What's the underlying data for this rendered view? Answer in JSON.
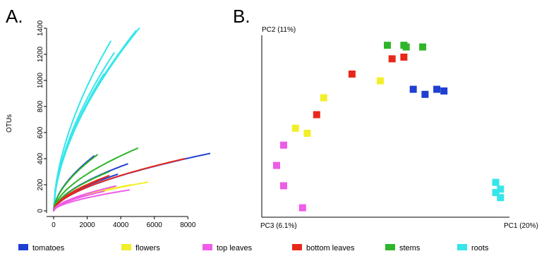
{
  "colors": {
    "tomatoes": "#1f3fd1",
    "flowers": "#f2ef2a",
    "top_leaves": "#ee5ce8",
    "bottom_leaves": "#e8291a",
    "stems": "#2eb52a",
    "roots": "#35e6ea"
  },
  "legend": [
    {
      "key": "tomatoes",
      "label": "tomatoes",
      "color": "#1f3fd1"
    },
    {
      "key": "flowers",
      "label": "flowers",
      "color": "#f2ef2a"
    },
    {
      "key": "top_leaves",
      "label": "top leaves",
      "color": "#ee5ce8"
    },
    {
      "key": "bottom_leaves",
      "label": "bottom leaves",
      "color": "#e8291a"
    },
    {
      "key": "stems",
      "label": "stems",
      "color": "#2eb52a"
    },
    {
      "key": "roots",
      "label": "roots",
      "color": "#35e6ea"
    }
  ],
  "chart_data": [
    {
      "panel": "A.",
      "type": "line",
      "ylabel": "OTUs",
      "xlim": [
        0,
        9500
      ],
      "ylim": [
        0,
        1400
      ],
      "xticks": [
        0,
        2000,
        4000,
        6000,
        8000
      ],
      "yticks": [
        0,
        200,
        400,
        600,
        800,
        1000,
        1200,
        1400
      ],
      "curves": [
        {
          "group": "roots",
          "x_end": 3400,
          "y_end": 1300
        },
        {
          "group": "roots",
          "x_end": 5100,
          "y_end": 1400
        },
        {
          "group": "roots",
          "x_end": 4900,
          "y_end": 1380
        },
        {
          "group": "roots",
          "x_end": 3600,
          "y_end": 1210
        },
        {
          "group": "roots",
          "x_end": 3000,
          "y_end": 1050
        },
        {
          "group": "tomatoes",
          "x_end": 9300,
          "y_end": 440
        },
        {
          "group": "tomatoes",
          "x_end": 4400,
          "y_end": 360
        },
        {
          "group": "tomatoes",
          "x_end": 2400,
          "y_end": 420
        },
        {
          "group": "tomatoes",
          "x_end": 3800,
          "y_end": 280
        },
        {
          "group": "stems",
          "x_end": 5000,
          "y_end": 480
        },
        {
          "group": "stems",
          "x_end": 2600,
          "y_end": 430
        },
        {
          "group": "stems",
          "x_end": 3300,
          "y_end": 300
        },
        {
          "group": "bottom_leaves",
          "x_end": 7800,
          "y_end": 400
        },
        {
          "group": "bottom_leaves",
          "x_end": 3300,
          "y_end": 270
        },
        {
          "group": "bottom_leaves",
          "x_end": 2800,
          "y_end": 240
        },
        {
          "group": "flowers",
          "x_end": 5600,
          "y_end": 220
        },
        {
          "group": "flowers",
          "x_end": 4600,
          "y_end": 200
        },
        {
          "group": "flowers",
          "x_end": 3600,
          "y_end": 180
        },
        {
          "group": "flowers",
          "x_end": 2200,
          "y_end": 140
        },
        {
          "group": "top_leaves",
          "x_end": 4500,
          "y_end": 160
        },
        {
          "group": "top_leaves",
          "x_end": 3700,
          "y_end": 190
        },
        {
          "group": "top_leaves",
          "x_end": 3000,
          "y_end": 150
        },
        {
          "group": "top_leaves",
          "x_end": 1800,
          "y_end": 120
        }
      ]
    },
    {
      "panel": "B.",
      "type": "scatter",
      "xlabel": "PC1 (20%)",
      "ylabel": "PC2 (11%)",
      "zlabel": "PC3 (6.1%)",
      "xlim": [
        0,
        100
      ],
      "ylim": [
        0,
        100
      ],
      "points": [
        {
          "group": "stems",
          "x": 50,
          "y": 97
        },
        {
          "group": "stems",
          "x": 57,
          "y": 97
        },
        {
          "group": "stems",
          "x": 58,
          "y": 96
        },
        {
          "group": "stems",
          "x": 65,
          "y": 96
        },
        {
          "group": "bottom_leaves",
          "x": 52,
          "y": 89
        },
        {
          "group": "bottom_leaves",
          "x": 57,
          "y": 90
        },
        {
          "group": "bottom_leaves",
          "x": 35,
          "y": 80
        },
        {
          "group": "bottom_leaves",
          "x": 20,
          "y": 56
        },
        {
          "group": "flowers",
          "x": 47,
          "y": 76
        },
        {
          "group": "flowers",
          "x": 23,
          "y": 66
        },
        {
          "group": "flowers",
          "x": 11,
          "y": 48
        },
        {
          "group": "flowers",
          "x": 16,
          "y": 45
        },
        {
          "group": "tomatoes",
          "x": 61,
          "y": 71
        },
        {
          "group": "tomatoes",
          "x": 66,
          "y": 68
        },
        {
          "group": "tomatoes",
          "x": 71,
          "y": 71
        },
        {
          "group": "tomatoes",
          "x": 74,
          "y": 70
        },
        {
          "group": "top_leaves",
          "x": 6,
          "y": 38
        },
        {
          "group": "top_leaves",
          "x": 3,
          "y": 26
        },
        {
          "group": "top_leaves",
          "x": 6,
          "y": 14
        },
        {
          "group": "top_leaves",
          "x": 14,
          "y": 1
        },
        {
          "group": "roots",
          "x": 96,
          "y": 16
        },
        {
          "group": "roots",
          "x": 98,
          "y": 12
        },
        {
          "group": "roots",
          "x": 96,
          "y": 10
        },
        {
          "group": "roots",
          "x": 98,
          "y": 7
        }
      ]
    }
  ]
}
